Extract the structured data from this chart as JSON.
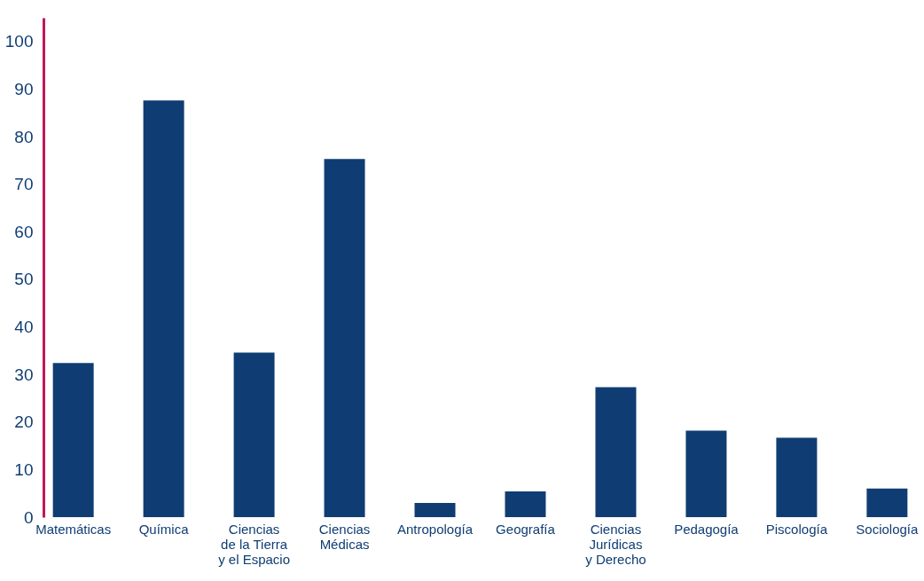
{
  "chart_data": {
    "type": "bar",
    "categories": [
      "Matemáticas",
      "Química",
      "Ciencias\nde la Tierra\ny el Espacio",
      "Ciencias\nMédicas",
      "Antropología",
      "Geografía",
      "Ciencias\nJurídicas\ny Derecho",
      "Pedagogía",
      "Piscología",
      "Sociología"
    ],
    "values": [
      32.4,
      87.6,
      34.6,
      75.3,
      3.0,
      5.4,
      27.3,
      18.2,
      16.7,
      6.0
    ],
    "color": "#0f3d73",
    "ylim": [
      0,
      105
    ],
    "yticks": [
      0,
      10,
      20,
      30,
      40,
      50,
      60,
      70,
      80,
      90,
      100
    ],
    "grid": false
  }
}
